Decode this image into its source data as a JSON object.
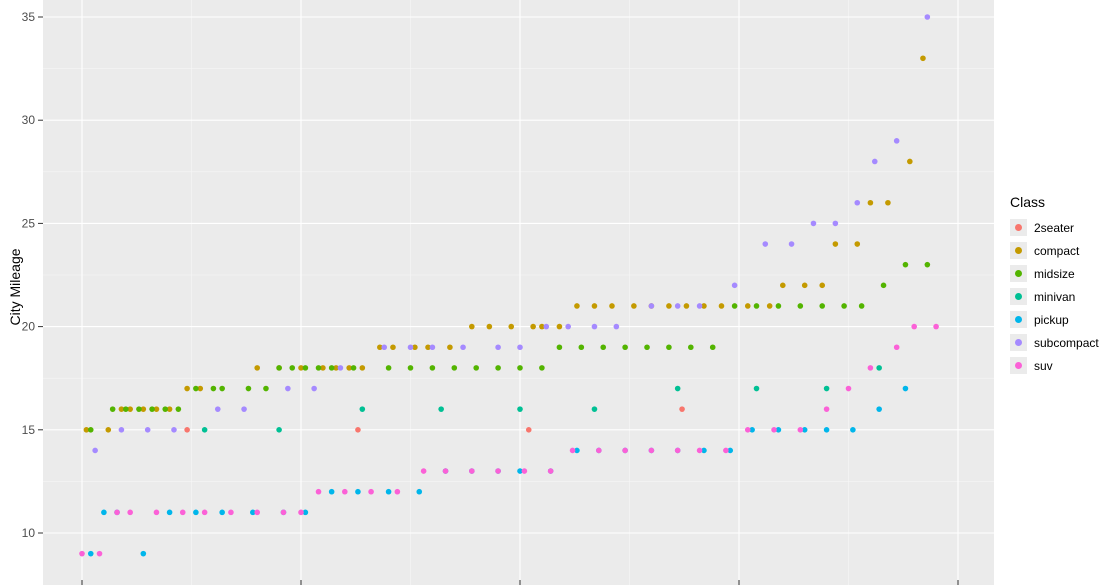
{
  "chart_data": {
    "type": "scatter",
    "title": "",
    "xlabel": "",
    "ylabel": "City Mileage",
    "ylim": [
      8.2,
      36
    ],
    "xlim": [
      -4,
      212
    ],
    "y_ticks": [
      10,
      15,
      20,
      25,
      30,
      35
    ],
    "x_grid_at": [
      0,
      50,
      100,
      150,
      200
    ],
    "grid": true,
    "legend": {
      "title": "Class",
      "position": "right"
    },
    "series": [
      {
        "name": "2seater",
        "color": "#F8766D",
        "points": [
          [
            24,
            15
          ],
          [
            63,
            15
          ],
          [
            102,
            15
          ],
          [
            137,
            16
          ]
        ]
      },
      {
        "name": "compact",
        "color": "#C49A00",
        "points": [
          [
            1,
            15
          ],
          [
            6,
            15
          ],
          [
            9,
            16
          ],
          [
            11,
            16
          ],
          [
            14,
            16
          ],
          [
            17,
            16
          ],
          [
            20,
            16
          ],
          [
            24,
            17
          ],
          [
            27,
            17
          ],
          [
            40,
            18
          ],
          [
            45,
            18
          ],
          [
            50,
            18
          ],
          [
            55,
            18
          ],
          [
            58,
            18
          ],
          [
            61,
            18
          ],
          [
            64,
            18
          ],
          [
            68,
            19
          ],
          [
            71,
            19
          ],
          [
            76,
            19
          ],
          [
            79,
            19
          ],
          [
            84,
            19
          ],
          [
            89,
            20
          ],
          [
            93,
            20
          ],
          [
            98,
            20
          ],
          [
            103,
            20
          ],
          [
            105,
            20
          ],
          [
            109,
            20
          ],
          [
            113,
            21
          ],
          [
            117,
            21
          ],
          [
            121,
            21
          ],
          [
            126,
            21
          ],
          [
            130,
            21
          ],
          [
            134,
            21
          ],
          [
            138,
            21
          ],
          [
            142,
            21
          ],
          [
            146,
            21
          ],
          [
            152,
            21
          ],
          [
            157,
            21
          ],
          [
            160,
            22
          ],
          [
            165,
            22
          ],
          [
            169,
            22
          ],
          [
            172,
            24
          ],
          [
            177,
            24
          ],
          [
            180,
            26
          ],
          [
            184,
            26
          ],
          [
            189,
            28
          ],
          [
            192,
            33
          ]
        ]
      },
      {
        "name": "midsize",
        "color": "#53B400",
        "points": [
          [
            2,
            15
          ],
          [
            7,
            16
          ],
          [
            10,
            16
          ],
          [
            13,
            16
          ],
          [
            16,
            16
          ],
          [
            19,
            16
          ],
          [
            22,
            16
          ],
          [
            26,
            17
          ],
          [
            30,
            17
          ],
          [
            32,
            17
          ],
          [
            38,
            17
          ],
          [
            42,
            17
          ],
          [
            45,
            18
          ],
          [
            48,
            18
          ],
          [
            51,
            18
          ],
          [
            54,
            18
          ],
          [
            57,
            18
          ],
          [
            62,
            18
          ],
          [
            70,
            18
          ],
          [
            75,
            18
          ],
          [
            80,
            18
          ],
          [
            85,
            18
          ],
          [
            90,
            18
          ],
          [
            95,
            18
          ],
          [
            100,
            18
          ],
          [
            105,
            18
          ],
          [
            109,
            19
          ],
          [
            114,
            19
          ],
          [
            119,
            19
          ],
          [
            124,
            19
          ],
          [
            129,
            19
          ],
          [
            134,
            19
          ],
          [
            139,
            19
          ],
          [
            144,
            19
          ],
          [
            149,
            21
          ],
          [
            154,
            21
          ],
          [
            159,
            21
          ],
          [
            164,
            21
          ],
          [
            169,
            21
          ],
          [
            174,
            21
          ],
          [
            178,
            21
          ],
          [
            183,
            22
          ],
          [
            188,
            23
          ],
          [
            193,
            23
          ]
        ]
      },
      {
        "name": "minivan",
        "color": "#00C094",
        "points": [
          [
            28,
            15
          ],
          [
            45,
            15
          ],
          [
            64,
            16
          ],
          [
            82,
            16
          ],
          [
            100,
            16
          ],
          [
            117,
            16
          ],
          [
            136,
            17
          ],
          [
            154,
            17
          ],
          [
            170,
            17
          ],
          [
            182,
            18
          ]
        ]
      },
      {
        "name": "pickup",
        "color": "#00B6EB",
        "points": [
          [
            2,
            9
          ],
          [
            5,
            11
          ],
          [
            8,
            11
          ],
          [
            14,
            9
          ],
          [
            20,
            11
          ],
          [
            26,
            11
          ],
          [
            32,
            11
          ],
          [
            39,
            11
          ],
          [
            46,
            11
          ],
          [
            51,
            11
          ],
          [
            57,
            12
          ],
          [
            63,
            12
          ],
          [
            70,
            12
          ],
          [
            77,
            12
          ],
          [
            83,
            13
          ],
          [
            89,
            13
          ],
          [
            95,
            13
          ],
          [
            100,
            13
          ],
          [
            107,
            13
          ],
          [
            113,
            14
          ],
          [
            118,
            14
          ],
          [
            124,
            14
          ],
          [
            130,
            14
          ],
          [
            136,
            14
          ],
          [
            142,
            14
          ],
          [
            148,
            14
          ],
          [
            153,
            15
          ],
          [
            159,
            15
          ],
          [
            165,
            15
          ],
          [
            170,
            15
          ],
          [
            176,
            15
          ],
          [
            182,
            16
          ],
          [
            188,
            17
          ]
        ]
      },
      {
        "name": "subcompact",
        "color": "#A58AFF",
        "points": [
          [
            3,
            14
          ],
          [
            9,
            15
          ],
          [
            15,
            15
          ],
          [
            21,
            15
          ],
          [
            31,
            16
          ],
          [
            37,
            16
          ],
          [
            47,
            17
          ],
          [
            53,
            17
          ],
          [
            59,
            18
          ],
          [
            69,
            19
          ],
          [
            75,
            19
          ],
          [
            80,
            19
          ],
          [
            87,
            19
          ],
          [
            95,
            19
          ],
          [
            100,
            19
          ],
          [
            106,
            20
          ],
          [
            111,
            20
          ],
          [
            117,
            20
          ],
          [
            122,
            20
          ],
          [
            130,
            21
          ],
          [
            136,
            21
          ],
          [
            141,
            21
          ],
          [
            149,
            22
          ],
          [
            156,
            24
          ],
          [
            162,
            24
          ],
          [
            167,
            25
          ],
          [
            172,
            25
          ],
          [
            177,
            26
          ],
          [
            181,
            28
          ],
          [
            186,
            29
          ],
          [
            193,
            35
          ]
        ]
      },
      {
        "name": "suv",
        "color": "#FB61D7",
        "points": [
          [
            0,
            9
          ],
          [
            4,
            9
          ],
          [
            8,
            11
          ],
          [
            11,
            11
          ],
          [
            17,
            11
          ],
          [
            23,
            11
          ],
          [
            28,
            11
          ],
          [
            34,
            11
          ],
          [
            40,
            11
          ],
          [
            46,
            11
          ],
          [
            50,
            11
          ],
          [
            54,
            12
          ],
          [
            60,
            12
          ],
          [
            66,
            12
          ],
          [
            72,
            12
          ],
          [
            78,
            13
          ],
          [
            83,
            13
          ],
          [
            89,
            13
          ],
          [
            95,
            13
          ],
          [
            101,
            13
          ],
          [
            107,
            13
          ],
          [
            112,
            14
          ],
          [
            118,
            14
          ],
          [
            124,
            14
          ],
          [
            130,
            14
          ],
          [
            136,
            14
          ],
          [
            141,
            14
          ],
          [
            147,
            14
          ],
          [
            152,
            15
          ],
          [
            158,
            15
          ],
          [
            164,
            15
          ],
          [
            170,
            16
          ],
          [
            175,
            17
          ],
          [
            180,
            18
          ],
          [
            186,
            19
          ],
          [
            190,
            20
          ],
          [
            195,
            20
          ]
        ]
      }
    ]
  }
}
